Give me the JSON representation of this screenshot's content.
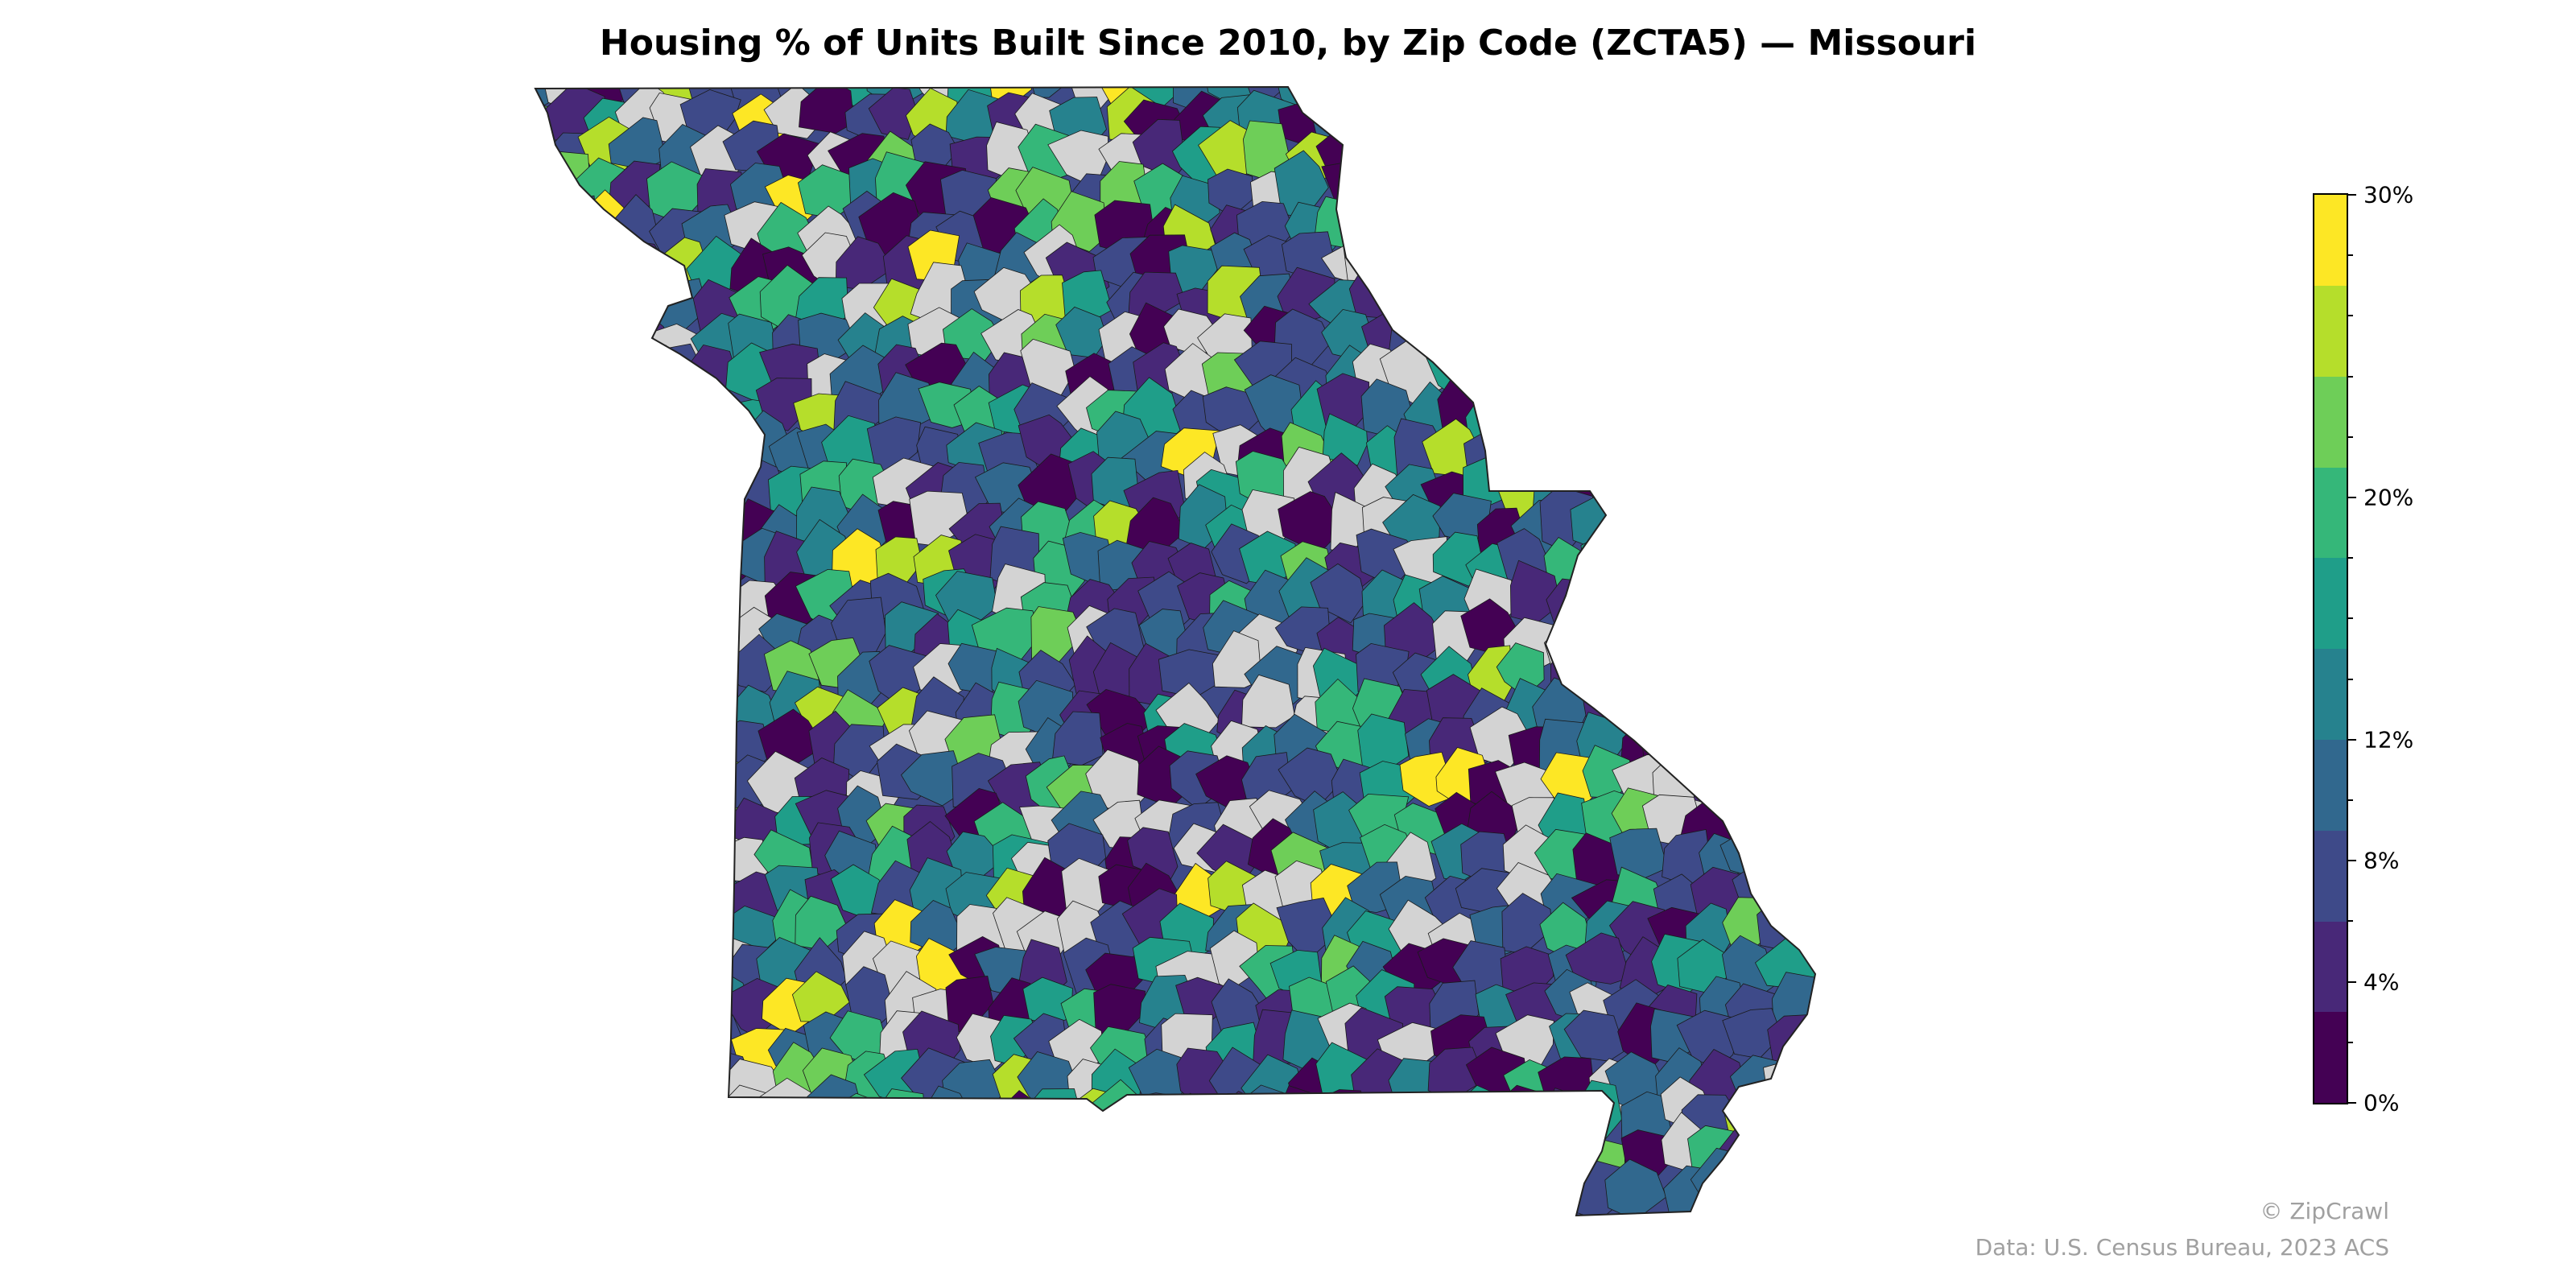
{
  "title": "Housing % of Units Built Since 2010, by Zip Code (ZCTA5) — Missouri",
  "colors": {
    "no_data": "#d3d3d3",
    "outline": "#222222",
    "bins": [
      "#440154",
      "#482878",
      "#3e4a89",
      "#31688e",
      "#26828e",
      "#1f9e89",
      "#35b779",
      "#6ece58",
      "#b5de2b",
      "#fde725"
    ]
  },
  "legend": {
    "min": 0,
    "max": 30,
    "tick_labels": [
      {
        "value": 0,
        "label": "0%"
      },
      {
        "value": 4,
        "label": "4%"
      },
      {
        "value": 8,
        "label": "8%"
      },
      {
        "value": 12,
        "label": "12%"
      },
      {
        "value": 20,
        "label": "20%"
      },
      {
        "value": 30,
        "label": "30%"
      }
    ],
    "minor_ticks": [
      2,
      6,
      10,
      14,
      16,
      18,
      22,
      24,
      26,
      28
    ]
  },
  "credits": {
    "brand": "© ZipCrawl",
    "source": "Data: U.S. Census Bureau, 2023 ACS"
  }
}
